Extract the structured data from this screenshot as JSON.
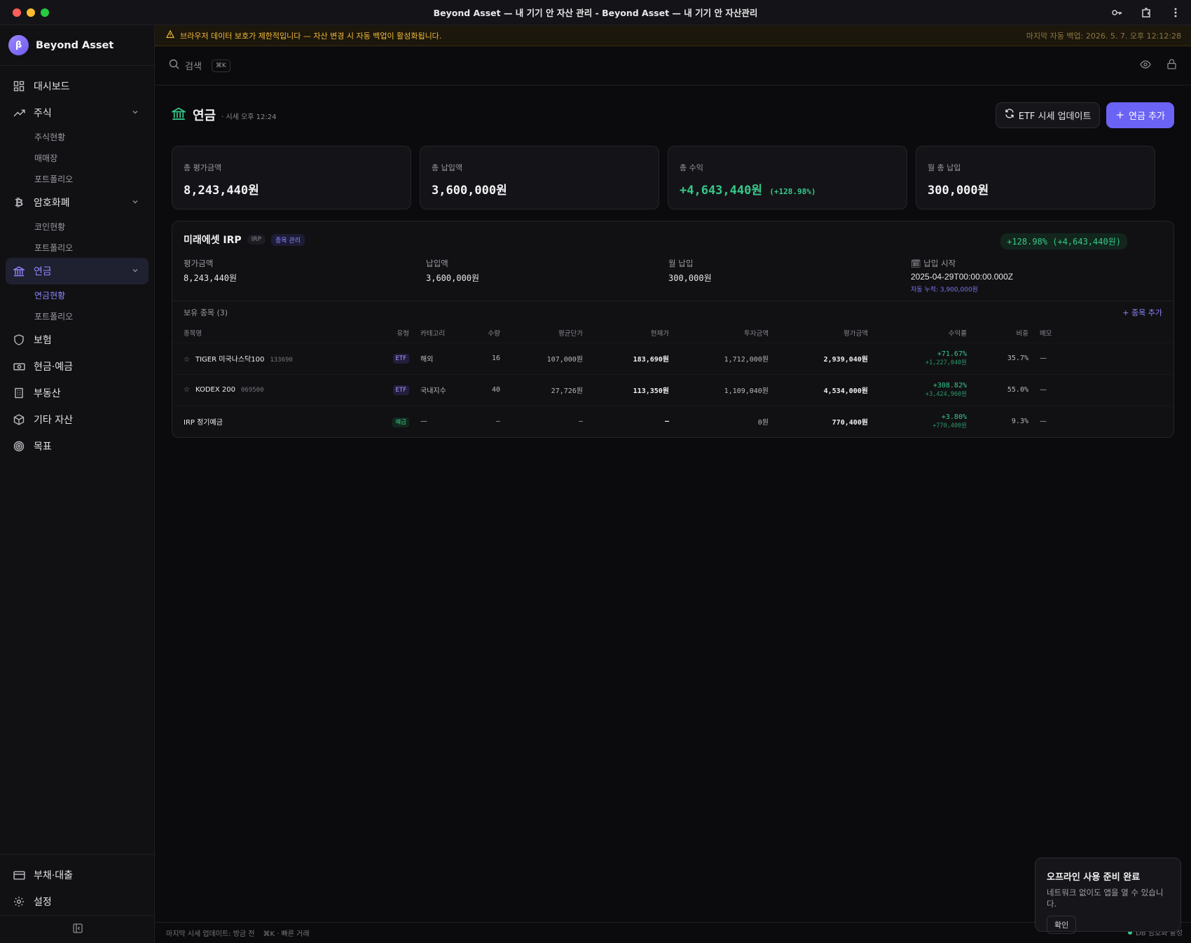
{
  "window": {
    "title": "Beyond Asset — 내 기기 안 자산 관리 - Beyond Asset — 내 기기 안 자산관리"
  },
  "brand": {
    "logo": "β",
    "name": "Beyond Asset"
  },
  "nav": {
    "dashboard": "대시보드",
    "stocks": "주식",
    "stocks_sub": [
      "주식현황",
      "매매장",
      "포트폴리오"
    ],
    "crypto": "암호화폐",
    "crypto_sub": [
      "코인현황",
      "포트폴리오"
    ],
    "pension": "연금",
    "pension_sub": [
      "연금현황",
      "포트폴리오"
    ],
    "insurance": "보험",
    "cash": "현금·예금",
    "realestate": "부동산",
    "other": "기타 자산",
    "goal": "목표",
    "debt": "부채·대출",
    "settings": "설정"
  },
  "warning": {
    "text": "브라우저 데이터 보호가 제한적입니다 — 자산 변경 시 자동 백업이 활성화됩니다.",
    "backup": "마지막 자동 백업: 2026. 5. 7. 오후 12:12:28"
  },
  "search": {
    "label": "검색",
    "shortcut": "⌘K"
  },
  "page": {
    "title": "연금",
    "subtitle": "· 시세 오후 12:24",
    "btn_update": "ETF 시세 업데이트",
    "btn_add": "연금 추가"
  },
  "summary": [
    {
      "label": "총 평가금액",
      "value": "8,243,440원"
    },
    {
      "label": "총 납입액",
      "value": "3,600,000원"
    },
    {
      "label": "총 수익",
      "value": "+4,643,440원",
      "pct": "(+128.98%)"
    },
    {
      "label": "월 총 납입",
      "value": "300,000원"
    }
  ],
  "account": {
    "name": "미래에셋 IRP",
    "type": "IRP",
    "manage": "종목 관리",
    "gain": "+128.98% (+4,643,440원)",
    "stats": [
      {
        "label": "평가금액",
        "value": "8,243,440원"
      },
      {
        "label": "납입액",
        "value": "3,600,000원"
      },
      {
        "label": "월 납입",
        "value": "300,000원"
      },
      {
        "label": "🗓 납입 시작",
        "value": "2025-04-29T00:00:00.000Z",
        "note": "자동 누적: 3,900,000원"
      }
    ],
    "holdings_title": "보유 종목 (3)",
    "add_holding": "+ 종목 추가",
    "columns": [
      "종목명",
      "유형",
      "카테고리",
      "수량",
      "평균단가",
      "현재가",
      "투자금액",
      "평가금액",
      "수익률",
      "비중",
      "메모"
    ],
    "rows": [
      {
        "star": "☆",
        "name": "TIGER 미국나스닥100",
        "code": "133690",
        "type": "ETF",
        "category": "해외",
        "qty": "16",
        "avg": "107,000원",
        "cur": "183,690원",
        "invest": "1,712,000원",
        "eval": "2,939,040원",
        "rate": "+71.67%",
        "gain": "+1,227,040원",
        "weight": "35.7%",
        "memo": "—"
      },
      {
        "star": "☆",
        "name": "KODEX 200",
        "code": "069500",
        "type": "ETF",
        "category": "국내지수",
        "qty": "40",
        "avg": "27,726원",
        "cur": "113,350원",
        "invest": "1,109,040원",
        "eval": "4,534,000원",
        "rate": "+308.82%",
        "gain": "+3,424,960원",
        "weight": "55.0%",
        "memo": "—"
      },
      {
        "star": "",
        "name": "IRP 정기예금",
        "code": "",
        "type": "예금",
        "category": "—",
        "qty": "—",
        "avg": "—",
        "cur": "—",
        "invest": "0원",
        "eval": "770,400원",
        "rate": "+3.80%",
        "gain": "+770,400원",
        "weight": "9.3%",
        "memo": "—"
      }
    ]
  },
  "status": {
    "left": "마지막 시세 업데이트: 방금 전",
    "shortcut": "⌘K · 빠른 거래",
    "db": "DB 암호화 활성"
  },
  "toast": {
    "title": "오프라인 사용 준비 완료",
    "body": "네트워크 없이도 앱을 열 수 있습니다.",
    "btn": "확인"
  },
  "colors": {
    "accent": "#6b63f5",
    "positive": "#37c98a",
    "warning": "#f0b93a"
  }
}
